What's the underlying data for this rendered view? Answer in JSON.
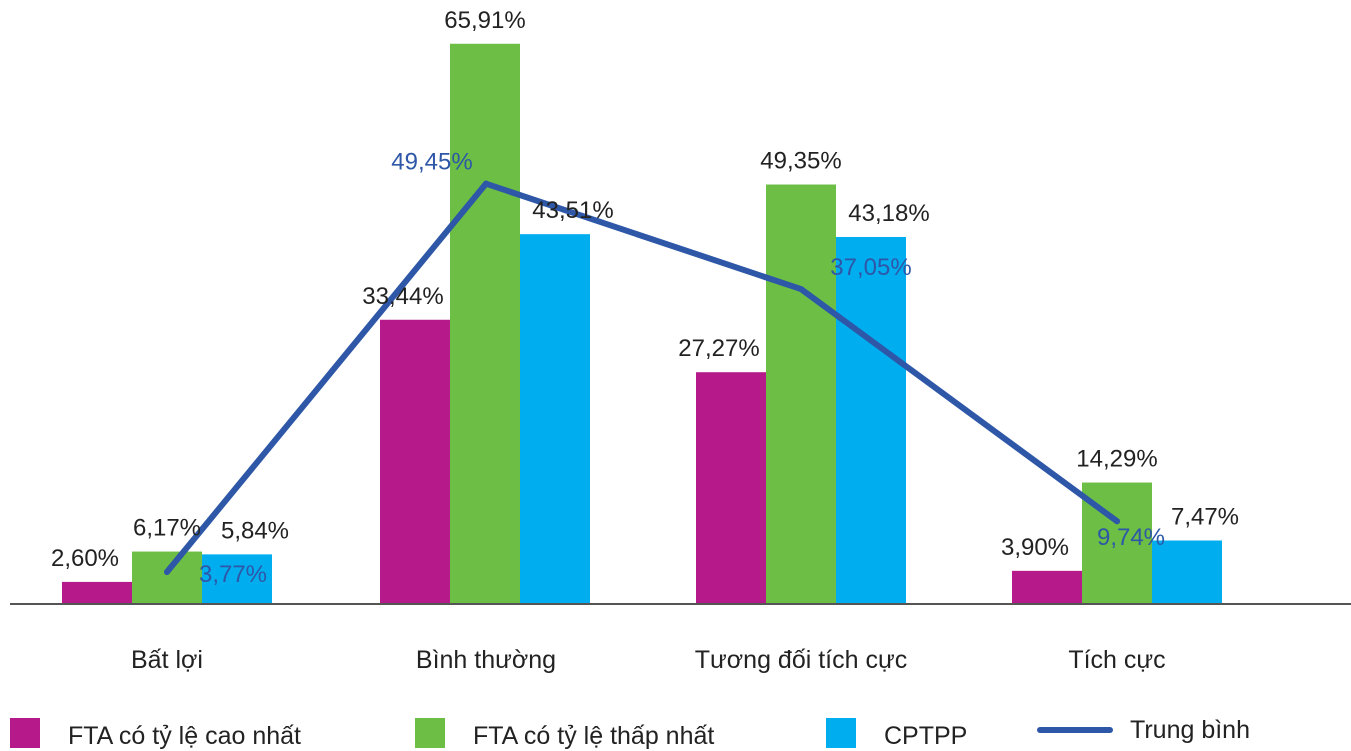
{
  "chart_data": {
    "type": "bar",
    "categories": [
      "Bất lợi",
      "Bình thường",
      "Tương đối tích cực",
      "Tích cực"
    ],
    "series": [
      {
        "name": "FTA có tỷ lệ cao nhất",
        "color": "#b5198a",
        "values": [
          2.6,
          33.44,
          27.27,
          3.9
        ],
        "labels": [
          "2,60%",
          "33,44%",
          "27,27%",
          "3,90%"
        ]
      },
      {
        "name": "FTA có tỷ lệ thấp nhất",
        "color": "#6cbe45",
        "values": [
          6.17,
          65.91,
          49.35,
          14.29
        ],
        "labels": [
          "6,17%",
          "65,91%",
          "49,35%",
          "14,29%"
        ]
      },
      {
        "name": "CPTPP",
        "color": "#00aeef",
        "values": [
          5.84,
          43.51,
          43.18,
          7.47
        ],
        "labels": [
          "5,84%",
          "43,51%",
          "43,18%",
          "7,47%"
        ]
      }
    ],
    "line_series": {
      "name": "Trung bình",
      "type": "line",
      "color": "#2e57a8",
      "values": [
        3.77,
        49.45,
        37.05,
        9.74
      ],
      "labels": [
        "3,77%",
        "49,45%",
        "37,05%",
        "9,74%"
      ]
    },
    "ylim": [
      0,
      70
    ],
    "grid": false,
    "legend_position": "bottom"
  }
}
